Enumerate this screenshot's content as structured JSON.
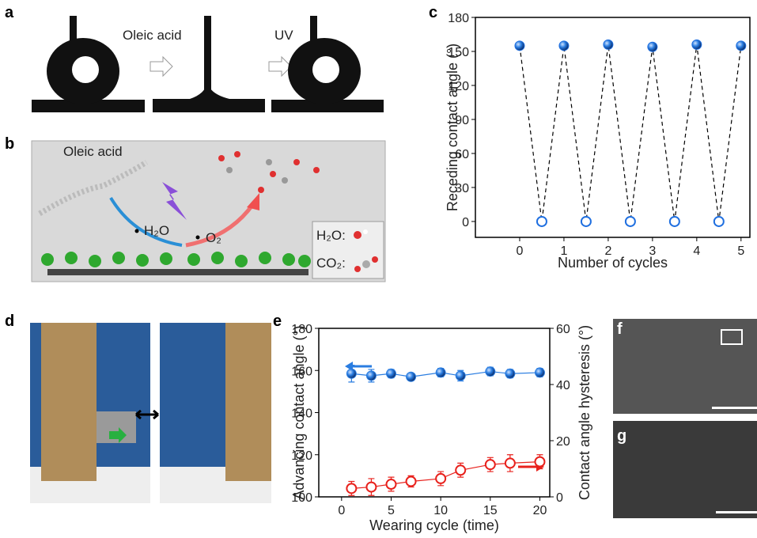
{
  "figure": {
    "panel_a": {
      "label": "a",
      "step1": "Oleic acid",
      "step2": "UV"
    },
    "panel_b": {
      "label": "b",
      "molecule": "Oleic acid",
      "water": "H₂O",
      "oxygen": "O₂",
      "legend_water": "H₂O:",
      "legend_co2": "CO₂:"
    },
    "panel_d": {
      "label": "d"
    },
    "panel_f": {
      "label": "f"
    },
    "panel_g": {
      "label": "g"
    }
  },
  "chart_data": [
    {
      "type": "line",
      "panel_label": "c",
      "xlabel": "Number of cycles",
      "ylabel": "Receding contact angle (°)",
      "x": [
        0,
        0.5,
        1,
        1.5,
        2,
        2.5,
        3,
        3.5,
        4,
        4.5,
        5
      ],
      "series": [
        {
          "color": "#1f6fe0",
          "line_color": "#000000",
          "line_style": "dashed",
          "marker": "alternating",
          "values": [
            155,
            0,
            155,
            0,
            156,
            0,
            154,
            0,
            156,
            0,
            155
          ]
        }
      ],
      "xlim": [
        -1,
        5.2
      ],
      "xticks": [
        0,
        1,
        2,
        3,
        4,
        5
      ],
      "ylim": [
        -14,
        180
      ],
      "yticks": [
        0,
        30,
        60,
        90,
        120,
        150,
        180
      ]
    },
    {
      "type": "line",
      "panel_label": "e",
      "xlabel": "Wearing cycle (time)",
      "ylabel": "Advancing contact angle (°)",
      "y2label": "Contact angle hysteresis (°)",
      "x": [
        1,
        3,
        5,
        7,
        10,
        12,
        15,
        17,
        20
      ],
      "series": [
        {
          "color": "#2a7de1",
          "line_color": "#2a7de1",
          "line_style": "solid",
          "marker": "filled",
          "values": [
            158.5,
            157.5,
            158.5,
            157,
            159,
            157.5,
            159.5,
            158.5,
            159
          ],
          "errors": [
            4,
            3,
            2,
            1.5,
            2,
            2.5,
            2,
            2,
            2
          ]
        },
        {
          "color": "#e8211c",
          "line_color": "#e8211c",
          "line_style": "solid",
          "marker": "hollow",
          "axis": "y2",
          "values": [
            3,
            3.5,
            4.5,
            5.5,
            6.5,
            9.5,
            11.5,
            12,
            12.5
          ],
          "errors": [
            2.5,
            3,
            2.5,
            2,
            2.5,
            2.5,
            2.5,
            3,
            2.5
          ]
        }
      ],
      "xlim": [
        -2.3,
        21
      ],
      "xticks": [
        0,
        5,
        10,
        15,
        20
      ],
      "ylim": [
        100,
        180
      ],
      "yticks": [
        100,
        120,
        140,
        160,
        180
      ],
      "y2lim": [
        0,
        60
      ],
      "y2ticks": [
        0,
        20,
        40,
        60
      ]
    }
  ]
}
